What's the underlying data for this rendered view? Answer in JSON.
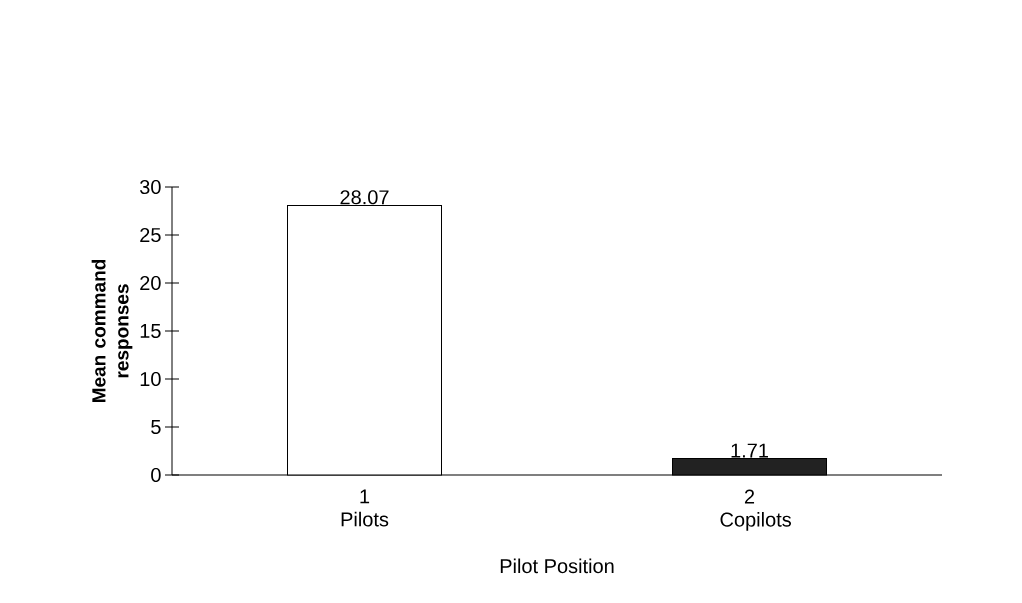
{
  "chart_data": {
    "type": "bar",
    "categories": [
      "1 Pilots",
      "2 Copilots"
    ],
    "values": [
      28.07,
      1.71
    ],
    "colors": [
      "#ffffff",
      "#222222"
    ],
    "xlabel": "Pilot Position",
    "ylabel": "Mean command responses",
    "ylim": [
      0,
      30
    ],
    "yticks": [
      0,
      5,
      10,
      15,
      20,
      25,
      30
    ],
    "data_labels": true
  }
}
